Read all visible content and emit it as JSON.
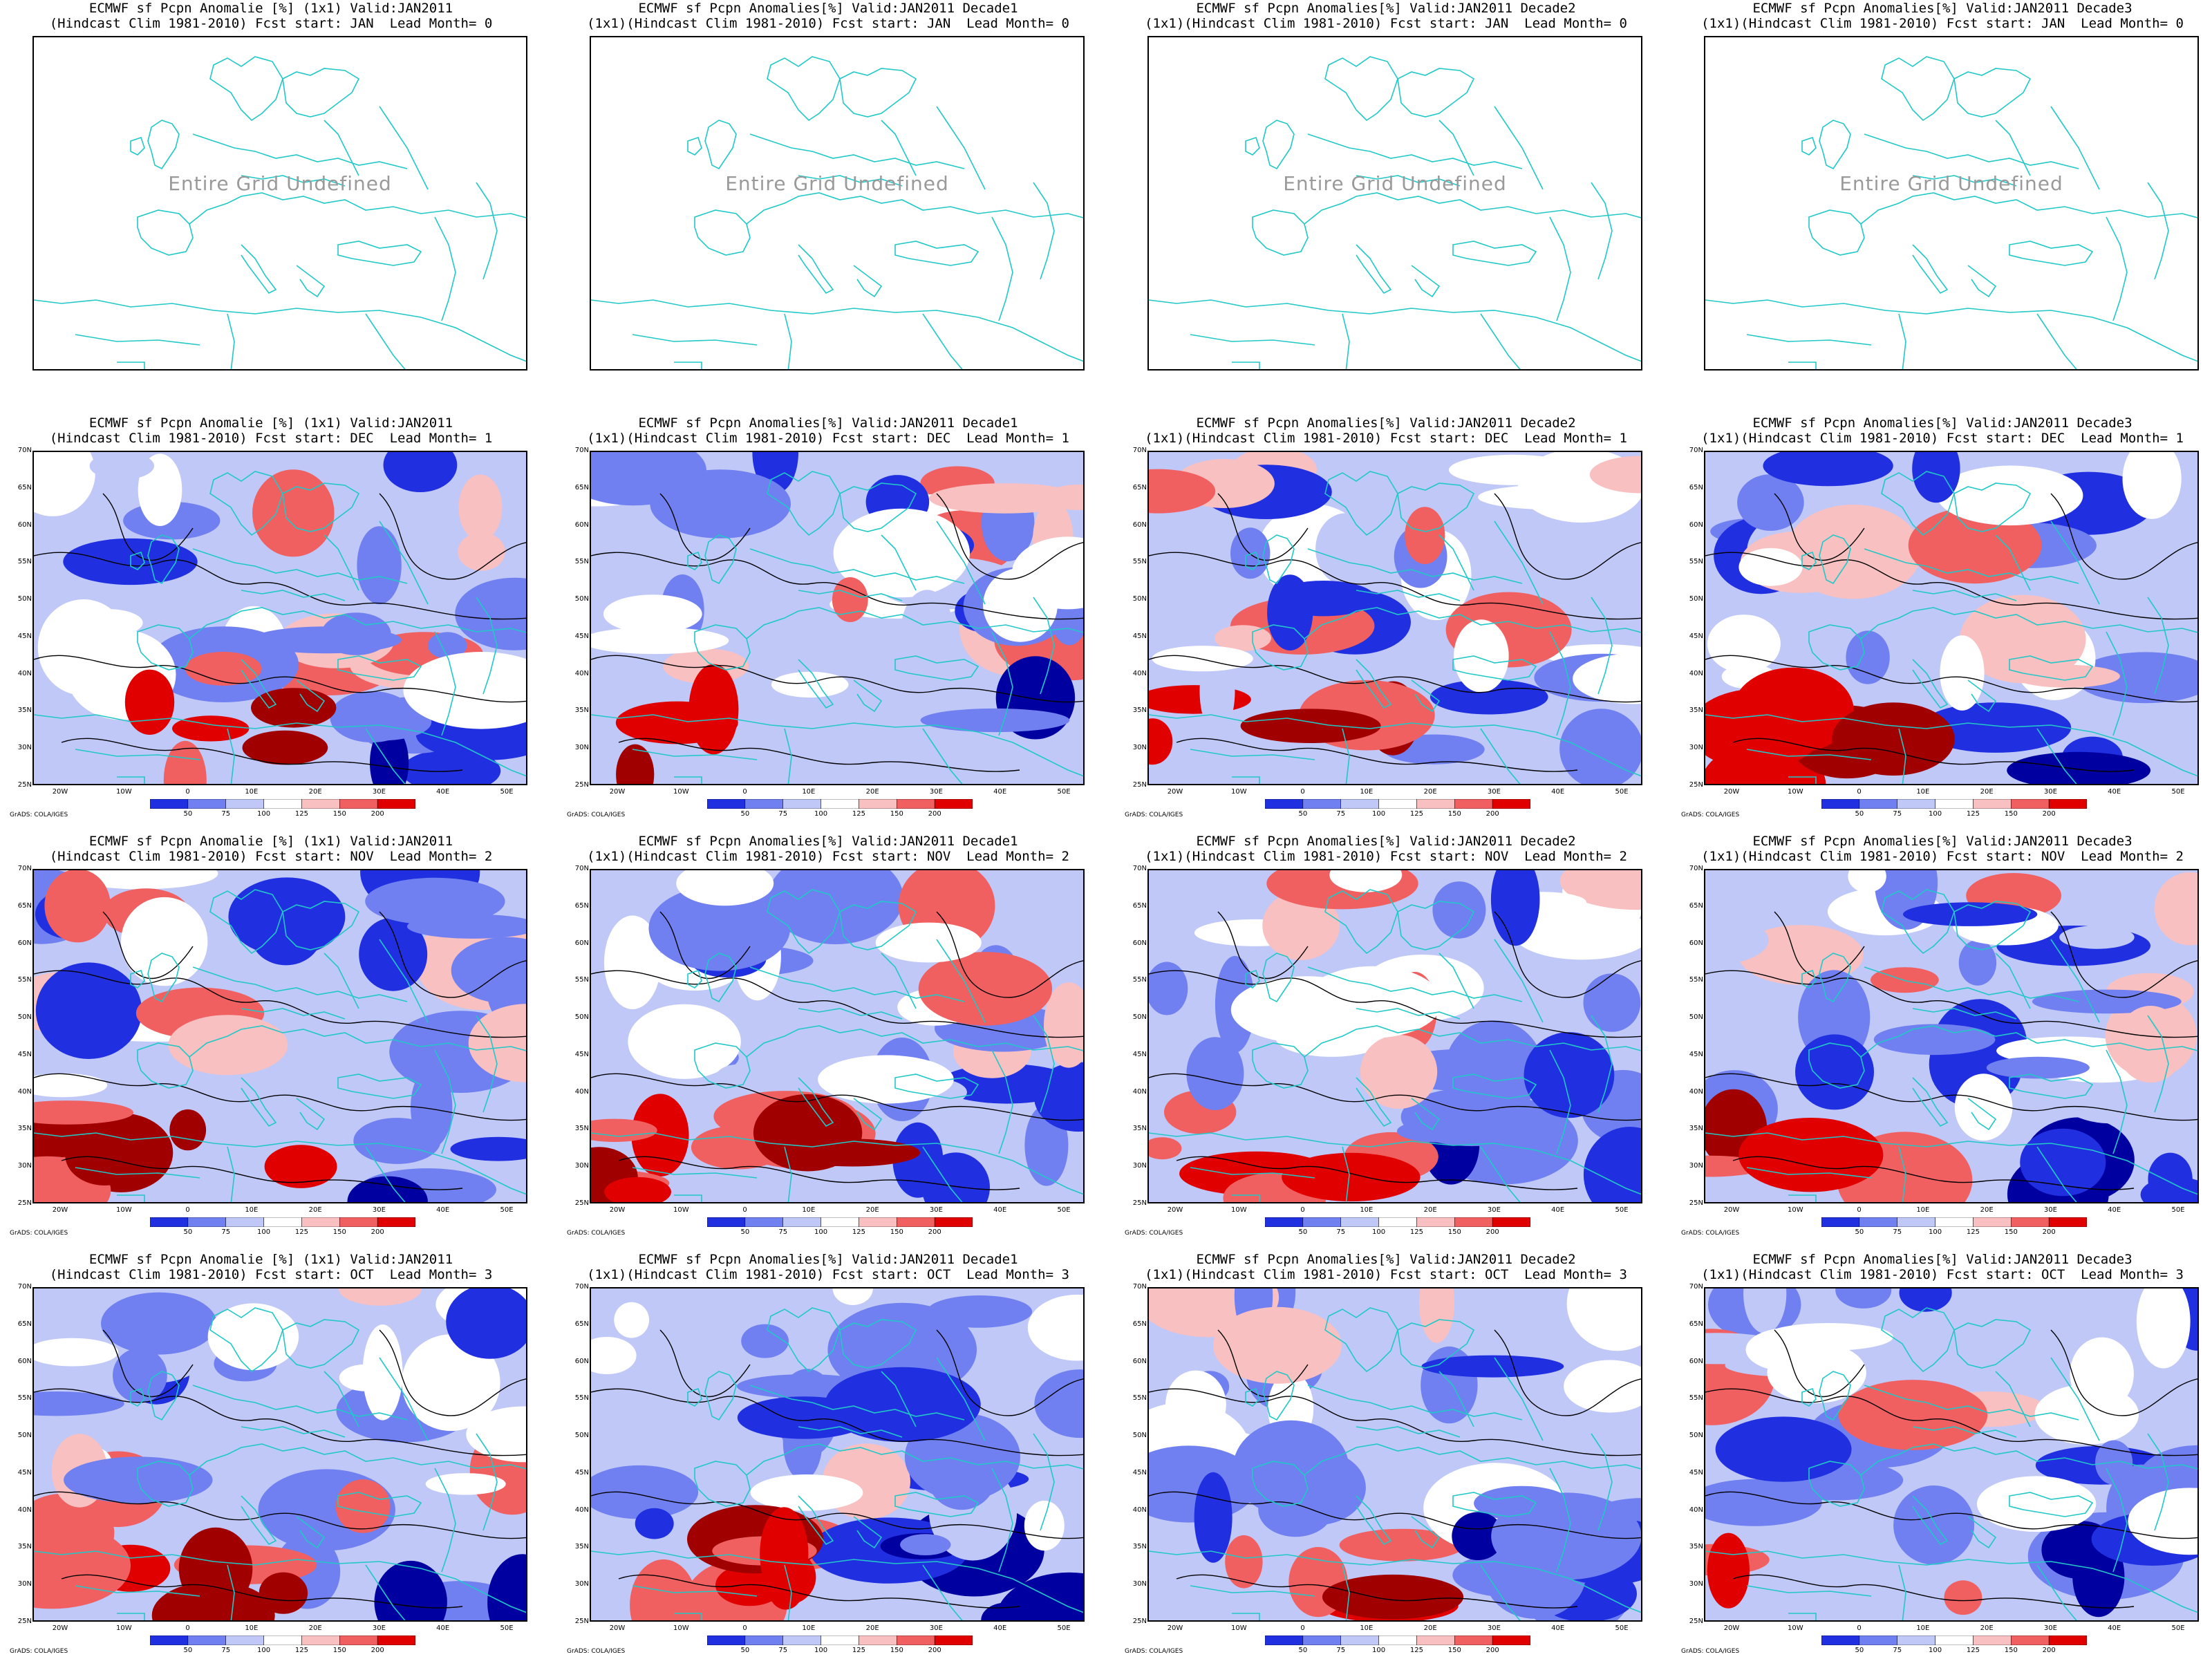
{
  "colors": {
    "coast": "#20c8c8",
    "contour": "#000000",
    "scale": [
      "#0000a0",
      "#2030e0",
      "#7080f0",
      "#c0c8f8",
      "#ffffff",
      "#f8c0c0",
      "#f06060",
      "#e00000",
      "#a00000"
    ]
  },
  "axes": {
    "lat_labels": [
      "70N",
      "65N",
      "60N",
      "55N",
      "50N",
      "45N",
      "40N",
      "35N",
      "30N",
      "25N"
    ],
    "lon_labels": [
      "20W",
      "10W",
      "0",
      "10E",
      "20E",
      "30E",
      "40E",
      "50E"
    ]
  },
  "colorbar": {
    "labels": [
      "50",
      "75",
      "100",
      "125",
      "150",
      "200"
    ]
  },
  "credit": "GrADS: COLA/IGES",
  "undefined_text": "Entire Grid Undefined",
  "panels": [
    {
      "t1": "ECMWF sf Pcpn Anomalie [%] (1x1) Valid:JAN2011",
      "t2": "(Hindcast Clim 1981-2010) Fcst start: JAN  Lead Month= 0",
      "undef": true
    },
    {
      "t1": "ECMWF sf Pcpn Anomalies[%] Valid:JAN2011 Decade1",
      "t2": "(1x1)(Hindcast Clim 1981-2010) Fcst start: JAN  Lead Month= 0",
      "undef": true
    },
    {
      "t1": "ECMWF sf Pcpn Anomalies[%] Valid:JAN2011 Decade2",
      "t2": "(1x1)(Hindcast Clim 1981-2010) Fcst start: JAN  Lead Month= 0",
      "undef": true
    },
    {
      "t1": "ECMWF sf Pcpn Anomalies[%] Valid:JAN2011 Decade3",
      "t2": "(1x1)(Hindcast Clim 1981-2010) Fcst start: JAN  Lead Month= 0",
      "undef": true
    },
    {
      "t1": "ECMWF sf Pcpn Anomalie [%] (1x1) Valid:JAN2011",
      "t2": "(Hindcast Clim 1981-2010) Fcst start: DEC  Lead Month= 1",
      "undef": false
    },
    {
      "t1": "ECMWF sf Pcpn Anomalies[%] Valid:JAN2011 Decade1",
      "t2": "(1x1)(Hindcast Clim 1981-2010) Fcst start: DEC  Lead Month= 1",
      "undef": false
    },
    {
      "t1": "ECMWF sf Pcpn Anomalies[%] Valid:JAN2011 Decade2",
      "t2": "(1x1)(Hindcast Clim 1981-2010) Fcst start: DEC  Lead Month= 1",
      "undef": false
    },
    {
      "t1": "ECMWF sf Pcpn Anomalies[%] Valid:JAN2011 Decade3",
      "t2": "(1x1)(Hindcast Clim 1981-2010) Fcst start: DEC  Lead Month= 1",
      "undef": false
    },
    {
      "t1": "ECMWF sf Pcpn Anomalie [%] (1x1) Valid:JAN2011",
      "t2": "(Hindcast Clim 1981-2010) Fcst start: NOV  Lead Month= 2",
      "undef": false
    },
    {
      "t1": "ECMWF sf Pcpn Anomalies[%] Valid:JAN2011 Decade1",
      "t2": "(1x1)(Hindcast Clim 1981-2010) Fcst start: NOV  Lead Month= 2",
      "undef": false
    },
    {
      "t1": "ECMWF sf Pcpn Anomalies[%] Valid:JAN2011 Decade2",
      "t2": "(1x1)(Hindcast Clim 1981-2010) Fcst start: NOV  Lead Month= 2",
      "undef": false
    },
    {
      "t1": "ECMWF sf Pcpn Anomalies[%] Valid:JAN2011 Decade3",
      "t2": "(1x1)(Hindcast Clim 1981-2010) Fcst start: NOV  Lead Month= 2",
      "undef": false
    },
    {
      "t1": "ECMWF sf Pcpn Anomalie [%] (1x1) Valid:JAN2011",
      "t2": "(Hindcast Clim 1981-2010) Fcst start: OCT  Lead Month= 3",
      "undef": false
    },
    {
      "t1": "ECMWF sf Pcpn Anomalies[%] Valid:JAN2011 Decade1",
      "t2": "(1x1)(Hindcast Clim 1981-2010) Fcst start: OCT  Lead Month= 3",
      "undef": false
    },
    {
      "t1": "ECMWF sf Pcpn Anomalies[%] Valid:JAN2011 Decade2",
      "t2": "(1x1)(Hindcast Clim 1981-2010) Fcst start: OCT  Lead Month= 3",
      "undef": false
    },
    {
      "t1": "ECMWF sf Pcpn Anomalies[%] Valid:JAN2011 Decade3",
      "t2": "(1x1)(Hindcast Clim 1981-2010) Fcst start: OCT  Lead Month= 3",
      "undef": false
    }
  ]
}
